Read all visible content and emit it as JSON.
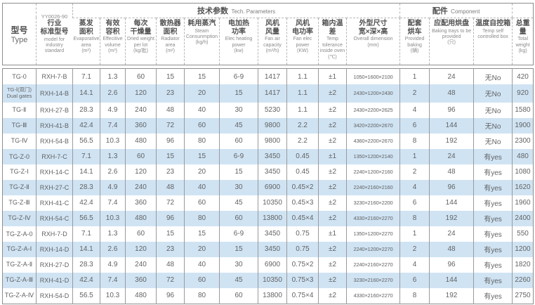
{
  "colors": {
    "band_blue": "#cfe3f3",
    "border_gray": "#8d8d8d",
    "text_gray": "#636363"
  },
  "table": {
    "header": {
      "type": {
        "zh": "型号",
        "en": "Type"
      },
      "standard": {
        "code": "YY0026-90",
        "zh": "行业\n标准型号",
        "en": "model for industry standard"
      },
      "groups": {
        "tech": {
          "zh": "技术参数",
          "en": "Tech. Parameters"
        },
        "component": {
          "zh": "配件",
          "en": "Component"
        }
      },
      "columns": [
        {
          "zh": "蒸发\n面积",
          "en": "Evaporative area",
          "unit": "(m²)"
        },
        {
          "zh": "有效\n容积",
          "en": "Effecitive volume",
          "unit": "(m³)"
        },
        {
          "zh": "每次\n干燥量",
          "en": "Dried weight per lot",
          "unit": "(kg/批)"
        },
        {
          "zh": "散热器\n面积",
          "en": "Radiator area",
          "unit": "(m²)"
        },
        {
          "zh": "耗用蒸汽",
          "en": "Steam Consunmption",
          "unit": "(kg/h)"
        },
        {
          "zh": "电加热\n功率",
          "en": "Elec heating power",
          "unit": "(kw)"
        },
        {
          "zh": "风机\n风量",
          "en": "Fan air capacity",
          "unit": "(m³/h)"
        },
        {
          "zh": "风机\n电功率",
          "en": "Fan elec power",
          "unit": "(KW)"
        },
        {
          "zh": "箱内温差",
          "en": "Temp tolerance inside oven",
          "unit": "(℃)"
        },
        {
          "zh": "外型尺寸\n宽×深×高",
          "en": "Overall dimension",
          "unit": "(mm)"
        },
        {
          "zh": "配套\n烘车",
          "en": "Provided baking",
          "unit": "(辆)"
        },
        {
          "zh": "应配用烘盘",
          "en": "Baking trays to be provided",
          "unit": "(只)"
        },
        {
          "zh": "温度自控箱",
          "en": "Temp self controlled box",
          "unit": ""
        },
        {
          "zh": "总重量",
          "en": "Total weight",
          "unit": "(kg)"
        }
      ]
    },
    "rows": [
      [
        "TG-0",
        "RXH-7-B",
        "7.1",
        "1.3",
        "60",
        "15",
        "15",
        "6-9",
        "1417",
        "1.1",
        "±1",
        "1050×1600×2100",
        "1",
        "24",
        "无No",
        "420"
      ],
      [
        "TG-Ⅰ(双门)\nDual gates",
        "RXH-14-B",
        "14.1",
        "2.6",
        "120",
        "23",
        "20",
        "15",
        "1417",
        "1.1",
        "±2",
        "2430×1200×2430",
        "2",
        "48",
        "无No",
        "920"
      ],
      [
        "TG-Ⅱ",
        "RXH-27-B",
        "28.3",
        "4.9",
        "240",
        "48",
        "40",
        "30",
        "5230",
        "1.1",
        "±2",
        "2430×2200×2625",
        "4",
        "96",
        "无No",
        "1580"
      ],
      [
        "TG-Ⅲ",
        "RXH-41-B",
        "42.4",
        "7.4",
        "360",
        "72",
        "60",
        "45",
        "9800",
        "2.2",
        "±2",
        "3420×2200×2670",
        "6",
        "144",
        "无No",
        "1900"
      ],
      [
        "TG-Ⅳ",
        "RXH-54-B",
        "56.5",
        "10.3",
        "480",
        "96",
        "80",
        "60",
        "9800",
        "2.2",
        "±2",
        "4360×2200×2670",
        "8",
        "192",
        "无No",
        "2300"
      ],
      [
        "TG-Z-0",
        "RXH-7-C",
        "7.1",
        "1.3",
        "60",
        "15",
        "15",
        "6-9",
        "3450",
        "0.45",
        "±1",
        "1350×1200×2140",
        "1",
        "24",
        "有yes",
        "480"
      ],
      [
        "TG-Z-Ⅰ",
        "RXH-14-C",
        "14.1",
        "2.6",
        "120",
        "23",
        "20",
        "15",
        "3450",
        "0.45",
        "±2",
        "2240×1200×2160",
        "2",
        "48",
        "有yes",
        "1080"
      ],
      [
        "TG-Z-Ⅱ",
        "RXH-27-C",
        "28.3",
        "4.9",
        "240",
        "48",
        "40",
        "30",
        "6900",
        "0.45×2",
        "±2",
        "2240×2160×2160",
        "4",
        "96",
        "有yes",
        "1620"
      ],
      [
        "TG-Z-Ⅲ",
        "RXH-41-C",
        "42.4",
        "7.4",
        "360",
        "72",
        "60",
        "45",
        "10350",
        "0.45×3",
        "±2",
        "3230×2160×2200",
        "6",
        "144",
        "有yes",
        "1960"
      ],
      [
        "TG-Z-Ⅳ",
        "RXH-54-C",
        "56.5",
        "10.3",
        "480",
        "96",
        "80",
        "60",
        "13800",
        "0.45×4",
        "±2",
        "4330×2160×2270",
        "8",
        "192",
        "有yes",
        "2400"
      ],
      [
        "TG-Z-A-0",
        "RXH-7-D",
        "7.1",
        "1.3",
        "60",
        "15",
        "15",
        "6-9",
        "3450",
        "0.75",
        "±1",
        "1350×1200×2270",
        "1",
        "24",
        "有yes",
        "550"
      ],
      [
        "TG-Z-A-Ⅰ",
        "RXH-14-D",
        "14.1",
        "2.6",
        "120",
        "23",
        "20",
        "15",
        "3450",
        "0.75",
        "±2",
        "2240×1200×2270",
        "2",
        "48",
        "有yes",
        "1200"
      ],
      [
        "TG-Z-A-Ⅱ",
        "RXH-27-D",
        "28.3",
        "4.9",
        "240",
        "48",
        "40",
        "30",
        "6900",
        "0.75×2",
        "±2",
        "2240×2160×2270",
        "4",
        "96",
        "有yes",
        "1820"
      ],
      [
        "TG-Z-A-Ⅲ",
        "RXH-41-D",
        "42.4",
        "7.4",
        "360",
        "72",
        "60",
        "45",
        "10350",
        "0.75×3",
        "±2",
        "3230×2160×2270",
        "6",
        "144",
        "有yes",
        "2260"
      ],
      [
        "TG-Z-A-Ⅳ",
        "RXH-54-D",
        "56.5",
        "10.3",
        "480",
        "96",
        "80",
        "60",
        "13800",
        "0.75×4",
        "±2",
        "4330×2160×2270",
        "8",
        "192",
        "有yes",
        "2750"
      ]
    ]
  }
}
